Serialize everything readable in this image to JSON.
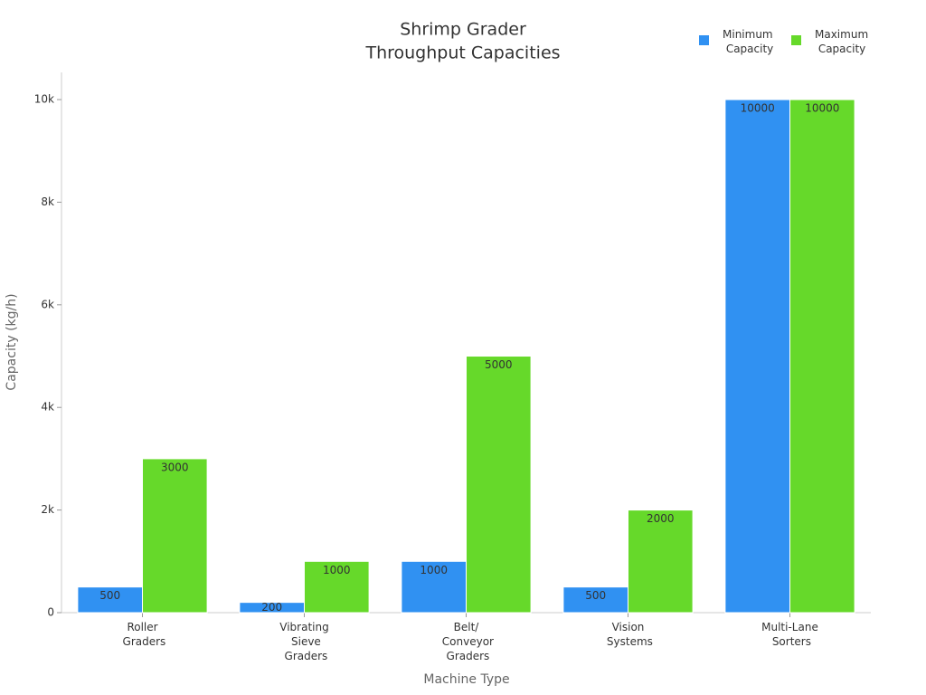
{
  "chart_data": {
    "type": "bar",
    "title": [
      "Shrimp Grader",
      "Throughput Capacities"
    ],
    "x_label": "Machine Type",
    "y_label": "Capacity (kg/h)",
    "categories": [
      "Roller Graders",
      "Vibrating Sieve Graders",
      "Belt/ Conveyor Graders",
      "Vision Systems",
      "Multi-Lane Sorters"
    ],
    "series": [
      {
        "name": "Minimum Capacity",
        "color": "#3091f2",
        "values": [
          500,
          200,
          1000,
          500,
          10000
        ]
      },
      {
        "name": "Maximum Capacity",
        "color": "#66d92a",
        "values": [
          3000,
          1000,
          5000,
          2000,
          10000
        ]
      }
    ],
    "ylim": [
      0,
      10530
    ],
    "yticks": [
      0,
      {
        "value": 2000,
        "label": "2k"
      },
      {
        "value": 4000,
        "label": "4k"
      },
      {
        "value": 6000,
        "label": "6k"
      },
      {
        "value": 8000,
        "label": "8k"
      },
      {
        "value": 10000,
        "label": "10k"
      }
    ],
    "legend": "top-right"
  }
}
